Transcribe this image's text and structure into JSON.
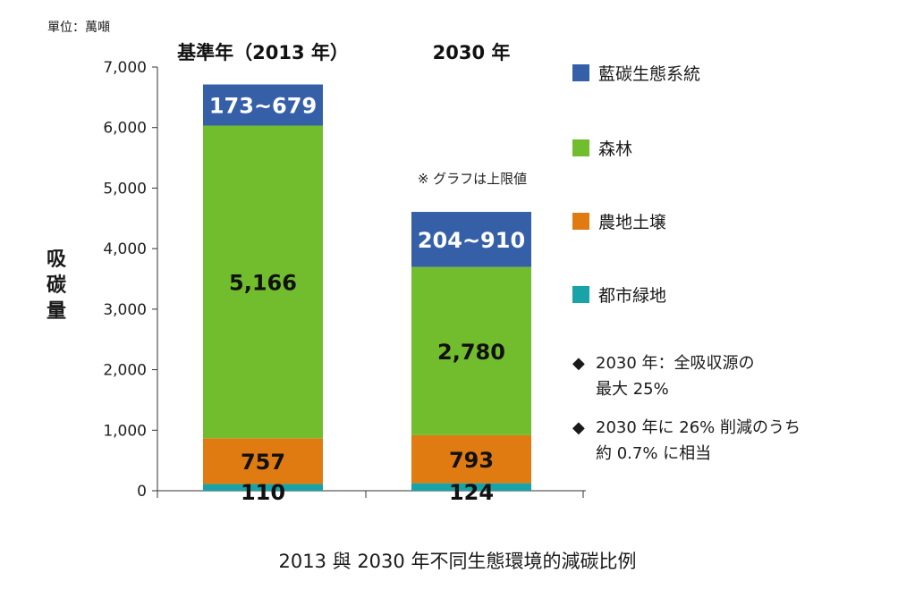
{
  "unit_label": "單位：萬噸",
  "y_axis_title": "吸碳量",
  "caption": "2013 與 2030 年不同生態環境的減碳比例",
  "upper_limit_note": "※ グラフは上限値",
  "legend": [
    {
      "label": "藍碳生態系統",
      "color": "#3560a8"
    },
    {
      "label": "森林",
      "color": "#72bd2e"
    },
    {
      "label": "農地土壌",
      "color": "#e07b12"
    },
    {
      "label": "都市緑地",
      "color": "#17a3a7"
    }
  ],
  "notes": [
    {
      "marker": "◆",
      "lines": [
        "2030 年：全吸収源の",
        "最大 25%"
      ]
    },
    {
      "marker": "◆",
      "lines": [
        "2030 年に 26% 削減のうち",
        "約 0.7% に相当"
      ]
    }
  ],
  "chart_data": {
    "type": "bar",
    "stacked": true,
    "categories": [
      "基準年（2013 年）",
      "2030 年"
    ],
    "ylim": [
      0,
      7000
    ],
    "yticks": [
      0,
      1000,
      2000,
      3000,
      4000,
      5000,
      6000,
      7000
    ],
    "ytick_labels": [
      "0",
      "1,000",
      "2,000",
      "3,000",
      "4,000",
      "5,000",
      "6,000",
      "7,000"
    ],
    "series": [
      {
        "name": "都市緑地",
        "color": "#17a3a7",
        "values": [
          110,
          124
        ],
        "labels": [
          "110",
          "124"
        ]
      },
      {
        "name": "農地土壌",
        "color": "#e07b12",
        "values": [
          757,
          793
        ],
        "labels": [
          "757",
          "793"
        ]
      },
      {
        "name": "森林",
        "color": "#72bd2e",
        "values": [
          5166,
          2780
        ],
        "labels": [
          "5,166",
          "2,780"
        ]
      },
      {
        "name": "藍碳生態系統",
        "color": "#3560a8",
        "values": [
          679,
          910
        ],
        "labels": [
          "173~679",
          "204~910"
        ]
      }
    ]
  }
}
